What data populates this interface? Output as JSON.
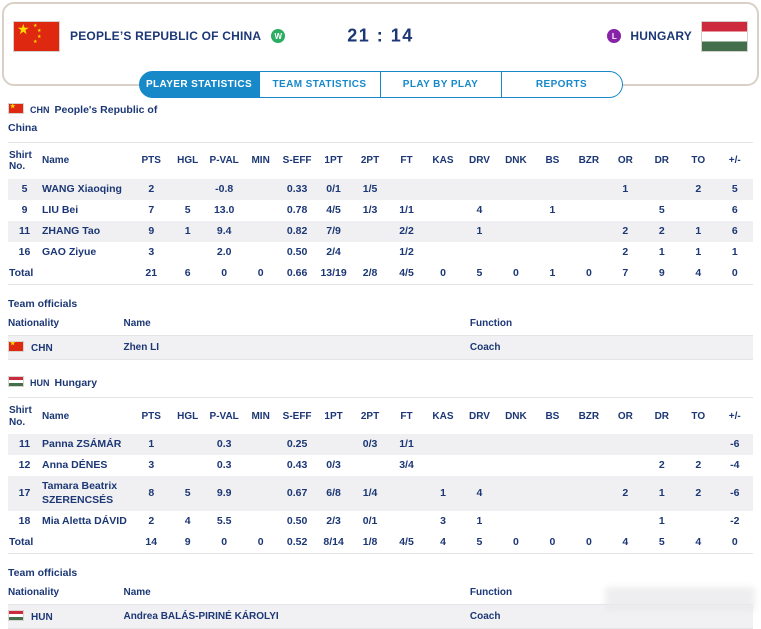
{
  "header": {
    "home": {
      "flag": "china-flag",
      "name": "PEOPLE’S REPUBLIC OF CHINA",
      "result_badge": "W"
    },
    "score": "21 : 14",
    "away": {
      "flag": "hungary-flag",
      "name": "HUNGARY",
      "result_badge": "L"
    }
  },
  "colors": {
    "navy": "#1c3775",
    "accent_blue": "#1789c9",
    "win_green": "#2bad64",
    "loss_purple": "#8822a8",
    "row_stripe": "#f0f0f2",
    "card_border": "#d9d1c8"
  },
  "tabs": [
    {
      "label": "PLAYER STATISTICS",
      "active": true
    },
    {
      "label": "TEAM STATISTICS",
      "active": false
    },
    {
      "label": "PLAY BY PLAY",
      "active": false
    },
    {
      "label": "REPORTS",
      "active": false
    }
  ],
  "stats_columns": [
    "Shirt No.",
    "Name",
    "PTS",
    "HGL",
    "P-VAL",
    "MIN",
    "S-EFF",
    "1PT",
    "2PT",
    "FT",
    "KAS",
    "DRV",
    "DNK",
    "BS",
    "BZR",
    "OR",
    "DR",
    "TO",
    "+/-"
  ],
  "officials_columns": [
    "Nationality",
    "Name",
    "Function"
  ],
  "teams": [
    {
      "code": "CHN",
      "name": "People's Republic of China",
      "players": [
        {
          "shirt": "5",
          "name": "WANG Xiaoqing",
          "cells": [
            "2",
            "",
            "-0.8",
            "",
            "0.33",
            "0/1",
            "1/5",
            "",
            "",
            "",
            "",
            "",
            "",
            "1",
            "",
            "2",
            "5"
          ]
        },
        {
          "shirt": "9",
          "name": "LIU Bei",
          "cells": [
            "7",
            "5",
            "13.0",
            "",
            "0.78",
            "4/5",
            "1/3",
            "1/1",
            "",
            "4",
            "",
            "1",
            "",
            "",
            "5",
            "",
            "6"
          ]
        },
        {
          "shirt": "11",
          "name": "ZHANG Tao",
          "cells": [
            "9",
            "1",
            "9.4",
            "",
            "0.82",
            "7/9",
            "",
            "2/2",
            "",
            "1",
            "",
            "",
            "",
            "2",
            "2",
            "1",
            "6"
          ]
        },
        {
          "shirt": "16",
          "name": "GAO Ziyue",
          "cells": [
            "3",
            "",
            "2.0",
            "",
            "0.50",
            "2/4",
            "",
            "1/2",
            "",
            "",
            "",
            "",
            "",
            "2",
            "1",
            "1",
            "1"
          ]
        }
      ],
      "total": {
        "label": "Total",
        "cells": [
          "21",
          "6",
          "0",
          "0",
          "0.66",
          "13/19",
          "2/8",
          "4/5",
          "0",
          "5",
          "0",
          "1",
          "0",
          "7",
          "9",
          "4",
          "0"
        ]
      },
      "officials_heading": "Team officials",
      "officials": [
        {
          "nationality": "CHN",
          "name": "Zhen LI",
          "function": "Coach"
        }
      ]
    },
    {
      "code": "HUN",
      "name": "Hungary",
      "players": [
        {
          "shirt": "11",
          "name": "Panna ZSÁMÁR",
          "cells": [
            "1",
            "",
            "0.3",
            "",
            "0.25",
            "",
            "0/3",
            "1/1",
            "",
            "",
            "",
            "",
            "",
            "",
            "",
            "",
            "-6"
          ]
        },
        {
          "shirt": "12",
          "name": "Anna DÉNES",
          "cells": [
            "3",
            "",
            "0.3",
            "",
            "0.43",
            "0/3",
            "",
            "3/4",
            "",
            "",
            "",
            "",
            "",
            "",
            "2",
            "2",
            "-4"
          ]
        },
        {
          "shirt": "17",
          "name": "Tamara Beatrix SZERENCSÉS",
          "cells": [
            "8",
            "5",
            "9.9",
            "",
            "0.67",
            "6/8",
            "1/4",
            "",
            "1",
            "4",
            "",
            "",
            "",
            "2",
            "1",
            "2",
            "-6"
          ]
        },
        {
          "shirt": "18",
          "name": "Mia Aletta DÁVID",
          "cells": [
            "2",
            "4",
            "5.5",
            "",
            "0.50",
            "2/3",
            "0/1",
            "",
            "3",
            "1",
            "",
            "",
            "",
            "",
            "1",
            "",
            "-2"
          ]
        }
      ],
      "total": {
        "label": "Total",
        "cells": [
          "14",
          "9",
          "0",
          "0",
          "0.52",
          "8/14",
          "1/8",
          "4/5",
          "4",
          "5",
          "0",
          "0",
          "0",
          "4",
          "5",
          "4",
          "0"
        ]
      },
      "officials_heading": "Team officials",
      "officials": [
        {
          "nationality": "HUN",
          "name": "Andrea BALÁS-PIRINÉ KÁROLYI",
          "function": "Coach"
        }
      ]
    }
  ]
}
